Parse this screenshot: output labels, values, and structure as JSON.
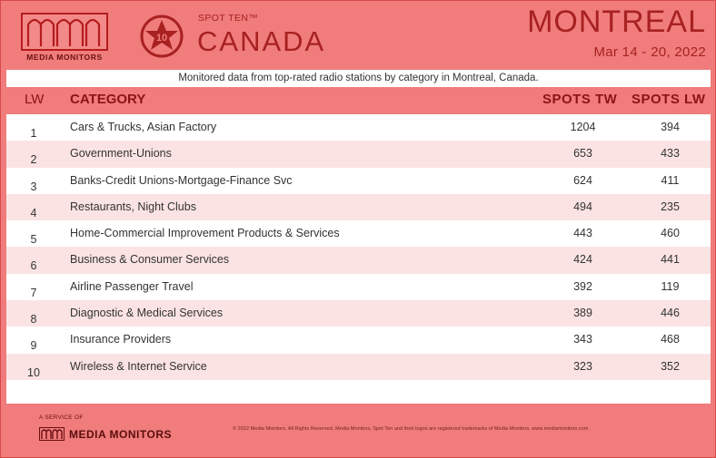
{
  "brand": {
    "logo_text": "MEDIA MONITORS",
    "badge_number": "10",
    "product": "SPOT TEN™",
    "country": "CANADA"
  },
  "market": {
    "city": "MONTREAL",
    "date_range": "Mar 14 - 20, 2022"
  },
  "description": "Monitored data from top-rated radio stations by category in Montreal, Canada.",
  "table": {
    "headers": {
      "lw": "LW",
      "category": "CATEGORY",
      "spots_tw": "SPOTS TW",
      "spots_lw": "SPOTS LW"
    },
    "rows": [
      {
        "lw": "1",
        "category": "Cars & Trucks, Asian Factory",
        "spots_tw": "1204",
        "spots_lw": "394"
      },
      {
        "lw": "2",
        "category": "Government-Unions",
        "spots_tw": "653",
        "spots_lw": "433"
      },
      {
        "lw": "3",
        "category": "Banks-Credit Unions-Mortgage-Finance Svc",
        "spots_tw": "624",
        "spots_lw": "411"
      },
      {
        "lw": "4",
        "category": "Restaurants, Night Clubs",
        "spots_tw": "494",
        "spots_lw": "235"
      },
      {
        "lw": "5",
        "category": "Home-Commercial Improvement Products & Services",
        "spots_tw": "443",
        "spots_lw": "460"
      },
      {
        "lw": "6",
        "category": "Business & Consumer Services",
        "spots_tw": "424",
        "spots_lw": "441"
      },
      {
        "lw": "7",
        "category": "Airline Passenger Travel",
        "spots_tw": "392",
        "spots_lw": "119"
      },
      {
        "lw": "8",
        "category": "Diagnostic & Medical Services",
        "spots_tw": "389",
        "spots_lw": "446"
      },
      {
        "lw": "9",
        "category": "Insurance Providers",
        "spots_tw": "343",
        "spots_lw": "468"
      },
      {
        "lw": "10",
        "category": "Wireless & Internet Service",
        "spots_tw": "323",
        "spots_lw": "352"
      }
    ]
  },
  "footer": {
    "service_label": "A SERVICE OF",
    "brand_name": "MEDIA MONITORS",
    "copyright": "© 2022 Media Monitors. All Rights Reserved. Media Monitors, Spot Ten and their logos are registered trademarks of Media Monitors. www.mediamonitors.com"
  },
  "colors": {
    "background": "#f07c7c",
    "accent": "#a82121",
    "row_alt": "#fbe3e3"
  }
}
